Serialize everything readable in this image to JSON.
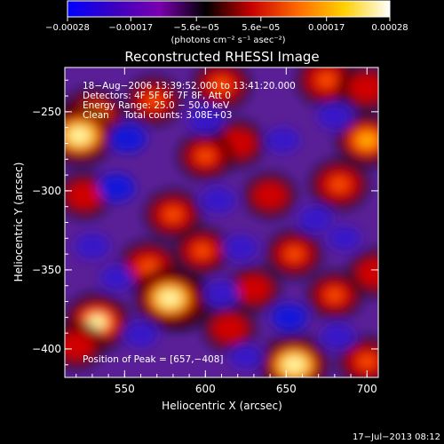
{
  "chart_data": {
    "type": "heatmap",
    "title": "Reconstructed RHESSI Image",
    "xlabel": "Heliocentric X (arcsec)",
    "ylabel": "Heliocentric Y (arcsec)",
    "xlim": [
      513,
      707
    ],
    "ylim": [
      -418,
      -222
    ],
    "x_ticks": [
      550,
      600,
      650,
      700
    ],
    "x_tick_labels": [
      "550",
      "600",
      "650",
      "700"
    ],
    "y_ticks": [
      -400,
      -350,
      -300,
      -250
    ],
    "y_tick_labels": [
      "−400",
      "−350",
      "−300",
      "−250"
    ],
    "colorbar": {
      "range": [
        -0.00028,
        0.00028
      ],
      "ticks": [
        -0.00028,
        -0.00017,
        -5.6e-05,
        5.6e-05,
        0.00017,
        0.00028
      ],
      "tick_labels": [
        "−0.00028",
        "−0.00017",
        "−5.6e−05",
        "5.6e−05",
        "0.00017",
        "0.00028"
      ],
      "units": "(photons cm⁻² s⁻¹ asec⁻²)",
      "colors": [
        "#0000ff",
        "#3a00c0",
        "#7a00b0",
        "#000000",
        "#c80000",
        "#ff6a00",
        "#ffd000",
        "#ffffff"
      ]
    },
    "annotation_lines": [
      "18−Aug−2006 13:39:52.000 to 13:41:20.000",
      "Detectors: 4F 5F 6F 7F 8F, Att 0",
      "Energy Range: 25.0 − 50.0 keV",
      "Clean     Total counts: 3.08E+03"
    ],
    "peak_label": "Position of Peak = [657,−408]",
    "peak_position": [
      657,
      -408
    ],
    "features": [
      {
        "x": 530,
        "y": -253,
        "value": 0.00022
      },
      {
        "x": 522,
        "y": -265,
        "value": 0.00028
      },
      {
        "x": 568,
        "y": -243,
        "value": 0.00014
      },
      {
        "x": 610,
        "y": -233,
        "value": 0.00016
      },
      {
        "x": 675,
        "y": -230,
        "value": 0.00018
      },
      {
        "x": 700,
        "y": -235,
        "value": 0.00012
      },
      {
        "x": 620,
        "y": -270,
        "value": 0.00012
      },
      {
        "x": 600,
        "y": -278,
        "value": 0.00013
      },
      {
        "x": 700,
        "y": -268,
        "value": 0.0002
      },
      {
        "x": 683,
        "y": -296,
        "value": 0.00017
      },
      {
        "x": 640,
        "y": -303,
        "value": 0.0001
      },
      {
        "x": 525,
        "y": -303,
        "value": 0.00011
      },
      {
        "x": 580,
        "y": -315,
        "value": 0.00015
      },
      {
        "x": 565,
        "y": -348,
        "value": 0.00018
      },
      {
        "x": 598,
        "y": -338,
        "value": 0.00013
      },
      {
        "x": 655,
        "y": -340,
        "value": 0.00014
      },
      {
        "x": 705,
        "y": -352,
        "value": 0.00012
      },
      {
        "x": 630,
        "y": -362,
        "value": 0.0001
      },
      {
        "x": 680,
        "y": -366,
        "value": 0.00013
      },
      {
        "x": 585,
        "y": -370,
        "value": 0.00022
      },
      {
        "x": 578,
        "y": -368,
        "value": 0.00028
      },
      {
        "x": 533,
        "y": -383,
        "value": 0.00024
      },
      {
        "x": 520,
        "y": -398,
        "value": 0.00012
      },
      {
        "x": 615,
        "y": -387,
        "value": 0.00011
      },
      {
        "x": 655,
        "y": -410,
        "value": 0.00028
      },
      {
        "x": 700,
        "y": -408,
        "value": 0.00015
      },
      {
        "x": 552,
        "y": -267,
        "value": -0.0002
      },
      {
        "x": 600,
        "y": -255,
        "value": -0.00018
      },
      {
        "x": 648,
        "y": -268,
        "value": -0.00016
      },
      {
        "x": 680,
        "y": -253,
        "value": -0.00017
      },
      {
        "x": 545,
        "y": -298,
        "value": -0.0002
      },
      {
        "x": 608,
        "y": -306,
        "value": -0.00018
      },
      {
        "x": 668,
        "y": -318,
        "value": -0.00016
      },
      {
        "x": 530,
        "y": -335,
        "value": -0.00018
      },
      {
        "x": 622,
        "y": -336,
        "value": -0.00017
      },
      {
        "x": 686,
        "y": -330,
        "value": -0.00015
      },
      {
        "x": 545,
        "y": -355,
        "value": -0.00015
      },
      {
        "x": 560,
        "y": -391,
        "value": -0.00016
      },
      {
        "x": 610,
        "y": -365,
        "value": -0.00016
      },
      {
        "x": 652,
        "y": -380,
        "value": -0.00019
      },
      {
        "x": 682,
        "y": -392,
        "value": -0.00016
      },
      {
        "x": 625,
        "y": -405,
        "value": -0.00013
      }
    ]
  },
  "footer": {
    "timestamp": "17−Jul−2013 08:12"
  }
}
